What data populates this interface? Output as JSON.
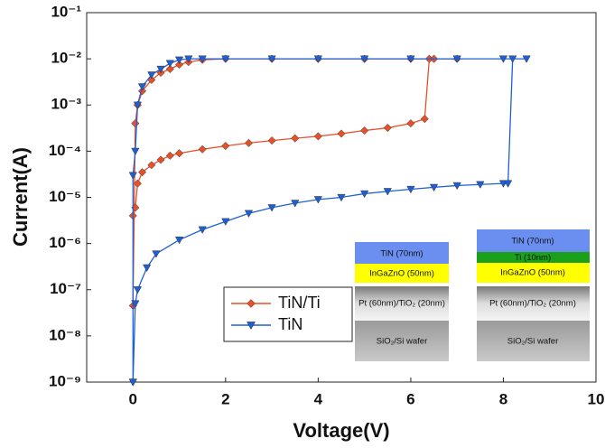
{
  "chart_data": {
    "type": "line",
    "x_label": "Voltage(V)",
    "y_label": "Current(A)",
    "y_log": true,
    "xlim": [
      -1,
      10
    ],
    "xticks": [
      0,
      2,
      4,
      6,
      8,
      10
    ],
    "ylim": [
      1e-09,
      0.1
    ],
    "yticks": [
      {
        "value": 1e-09,
        "label": "10⁻⁹"
      },
      {
        "value": 1e-08,
        "label": "10⁻⁸"
      },
      {
        "value": 1e-07,
        "label": "10⁻⁷"
      },
      {
        "value": 1e-06,
        "label": "10⁻⁶"
      },
      {
        "value": 1e-05,
        "label": "10⁻⁵"
      },
      {
        "value": 0.0001,
        "label": "10⁻⁴"
      },
      {
        "value": 0.001,
        "label": "10⁻³"
      },
      {
        "value": 0.01,
        "label": "10⁻²"
      },
      {
        "value": 0.1,
        "label": "10⁻¹"
      }
    ],
    "series": [
      {
        "name": "TiN/Ti",
        "color": "#e8502a",
        "marker": "diamond",
        "x": [
          0,
          0.05,
          0.1,
          0.2,
          0.4,
          0.6,
          0.8,
          1,
          1.5,
          2,
          2.5,
          3,
          3.5,
          4,
          4.5,
          5,
          5.5,
          6,
          6.3,
          6.4,
          7,
          6.5,
          6,
          5,
          4,
          3,
          2,
          1.5,
          1.2,
          1,
          0.8,
          0.6,
          0.4,
          0.2,
          0.1,
          0.05,
          0
        ],
        "values": [
          4e-06,
          6e-06,
          2e-05,
          3.5e-05,
          5e-05,
          6.5e-05,
          8e-05,
          9e-05,
          0.00011,
          0.00013,
          0.00015,
          0.00017,
          0.00019,
          0.00021,
          0.00024,
          0.00028,
          0.00032,
          0.0004,
          0.0005,
          0.01,
          0.01,
          0.01,
          0.01,
          0.01,
          0.01,
          0.01,
          0.01,
          0.0095,
          0.0085,
          0.0075,
          0.006,
          0.005,
          0.0035,
          0.002,
          0.001,
          0.0004,
          4.5e-08
        ]
      },
      {
        "name": "TiN",
        "color": "#1f5fd6",
        "marker": "triangle-down",
        "x": [
          0,
          0.05,
          0.1,
          0.3,
          0.5,
          1,
          1.5,
          2,
          2.5,
          3,
          3.5,
          4,
          4.5,
          5,
          5.5,
          6,
          6.5,
          7,
          7.5,
          8,
          8.1,
          8.2,
          8.5,
          8,
          7,
          6,
          5,
          4,
          3,
          2,
          1.5,
          1.2,
          1,
          0.8,
          0.6,
          0.4,
          0.2,
          0.1,
          0.05,
          0,
          0
        ],
        "values": [
          1e-09,
          5e-08,
          1e-07,
          3e-07,
          6e-07,
          1.2e-06,
          2e-06,
          3e-06,
          4.5e-06,
          6e-06,
          7.5e-06,
          9e-06,
          1e-05,
          1.2e-05,
          1.35e-05,
          1.5e-05,
          1.65e-05,
          1.8e-05,
          1.9e-05,
          2e-05,
          2e-05,
          0.01,
          0.01,
          0.01,
          0.01,
          0.01,
          0.01,
          0.01,
          0.01,
          0.01,
          0.01,
          0.01,
          0.0095,
          0.008,
          0.006,
          0.0045,
          0.0025,
          0.001,
          0.0001,
          3e-05,
          1e-09
        ]
      }
    ],
    "insets": [
      {
        "layers": [
          "TiN (70nm)",
          "InGaZnO (50nm)",
          "Pt (60nm)/TiO₂ (20nm)",
          "SiO₂/Si wafer"
        ]
      },
      {
        "layers": [
          "TiN (70nm)",
          "Ti (10nm)",
          "InGaZnO (50nm)",
          "Pt (60nm)/TiO₂ (20nm)",
          "SiO₂/Si wafer"
        ]
      }
    ]
  }
}
